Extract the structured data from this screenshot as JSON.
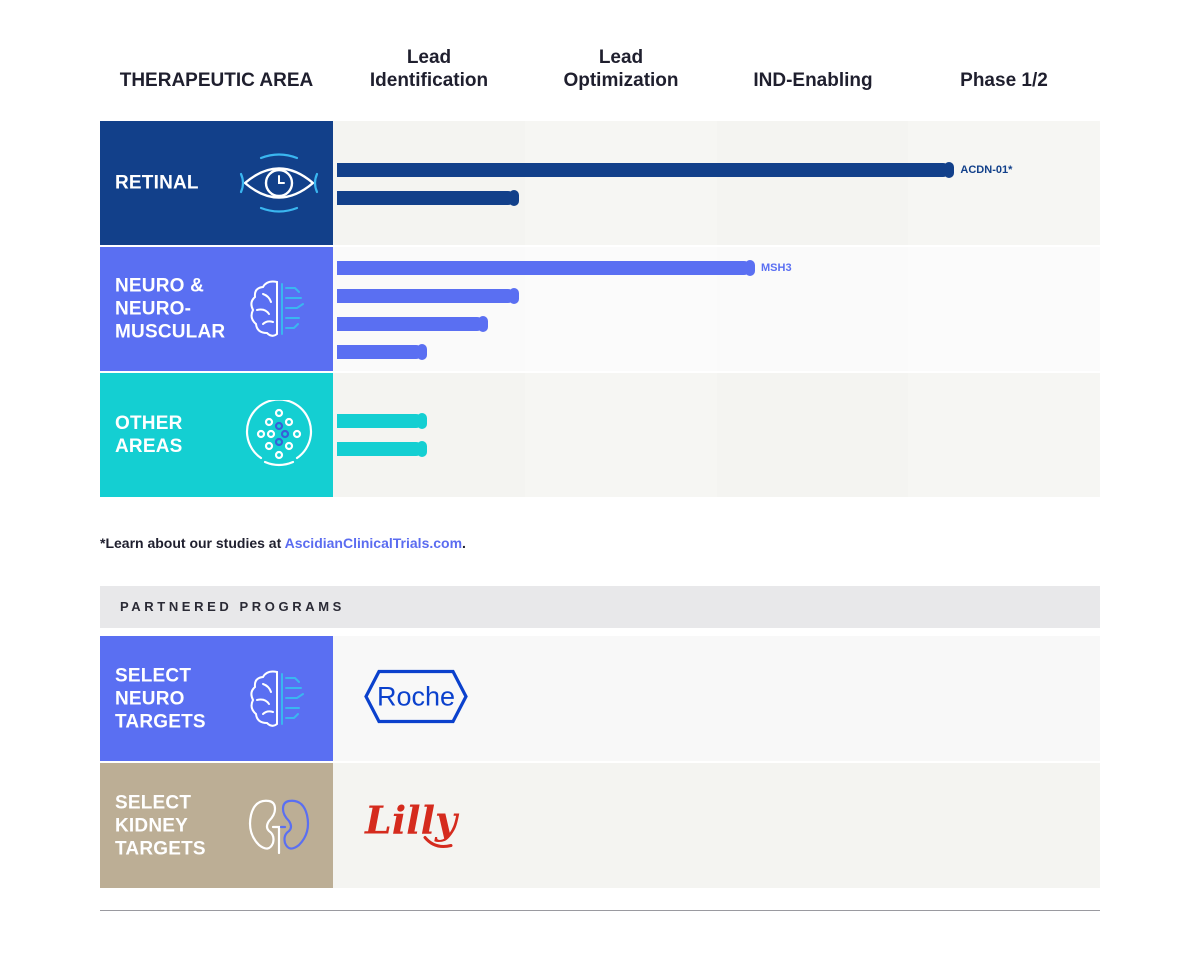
{
  "header": {
    "area_label": "THERAPEUTIC AREA",
    "stages": [
      "Lead\nIdentification",
      "Lead\nOptimization",
      "IND-Enabling",
      "Phase 1/2"
    ]
  },
  "colors": {
    "retinal": "#12408a",
    "neuro": "#5a6ff2",
    "other": "#14cfd2",
    "kidney": "#bcae95",
    "stripe_a": "#f4f4f1",
    "stripe_b": "#fafafa",
    "roche": "#0b41cd",
    "lilly": "#d52b1e"
  },
  "chart_data": {
    "type": "bar",
    "orientation": "horizontal",
    "stages": [
      "Lead Identification",
      "Lead Optimization",
      "IND-Enabling",
      "Phase 1/2"
    ],
    "unit": "stage progress (0 = start of Lead Identification, 4 = end of Phase 1/2)",
    "groups": [
      {
        "area": "RETINAL",
        "icon": "eye-icon",
        "programs": [
          {
            "label": "ACDN-01*",
            "progress": 3.22
          },
          {
            "label": "",
            "progress": 0.95
          }
        ]
      },
      {
        "area": "NEURO &\nNEURO-\nMUSCULAR",
        "icon": "brain-icon",
        "programs": [
          {
            "label": "MSH3",
            "progress": 2.18
          },
          {
            "label": "",
            "progress": 0.95
          },
          {
            "label": "",
            "progress": 0.79
          },
          {
            "label": "",
            "progress": 0.47
          }
        ]
      },
      {
        "area": "OTHER\nAREAS",
        "icon": "cell-icon",
        "programs": [
          {
            "label": "",
            "progress": 0.47
          },
          {
            "label": "",
            "progress": 0.47
          }
        ]
      }
    ]
  },
  "footnote": {
    "prefix": "*Learn about our studies at ",
    "link": "AscidianClinicalTrials.com",
    "suffix": "."
  },
  "partnered": {
    "title": "PARTNERED PROGRAMS",
    "rows": [
      {
        "label": "SELECT\nNEURO\nTARGETS",
        "icon": "brain-icon",
        "partner": "Roche"
      },
      {
        "label": "SELECT\nKIDNEY\nTARGETS",
        "icon": "kidney-icon",
        "partner": "Lilly"
      }
    ]
  }
}
